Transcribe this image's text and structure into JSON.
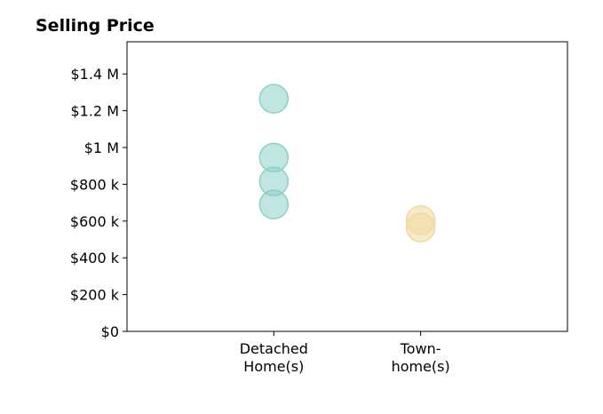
{
  "chart_data": {
    "type": "scatter",
    "title": "Selling Price",
    "xlabel": "",
    "ylabel": "",
    "categories": [
      [
        "Detached",
        "Home(s)"
      ],
      [
        "Town-",
        "home(s)"
      ]
    ],
    "xlim": [
      -1,
      2
    ],
    "ylim": [
      0,
      1575000
    ],
    "y_ticks": [
      {
        "value": 0,
        "label": "$0"
      },
      {
        "value": 200000,
        "label": "$200 k"
      },
      {
        "value": 400000,
        "label": "$400 k"
      },
      {
        "value": 600000,
        "label": "$600 k"
      },
      {
        "value": 800000,
        "label": "$800 k"
      },
      {
        "value": 1000000,
        "label": "$1 M"
      },
      {
        "value": 1200000,
        "label": "$1.2 M"
      },
      {
        "value": 1400000,
        "label": "$1.4 M"
      }
    ],
    "grid": false,
    "series": [
      {
        "category": 0,
        "color": "#8ecfc6",
        "values": [
          1265000,
          945000,
          815000,
          690000
        ]
      },
      {
        "category": 1,
        "color": "#f0d9a0",
        "values": [
          605000,
          565000
        ]
      }
    ]
  }
}
